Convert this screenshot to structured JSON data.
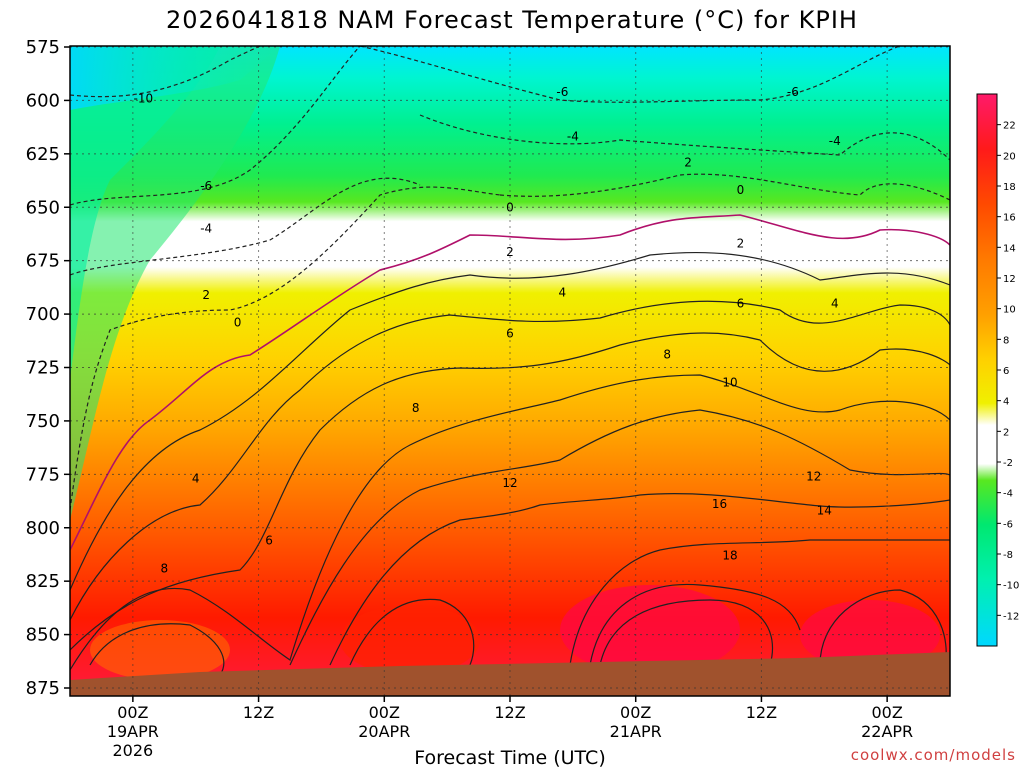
{
  "chart_data": {
    "type": "heatmap",
    "title": "2026041818 NAM Forecast Temperature (°C) for KPIH",
    "xlabel": "Forecast Time (UTC)",
    "ylabel": "",
    "y_ticks": [
      "575",
      "600",
      "625",
      "650",
      "675",
      "700",
      "725",
      "750",
      "775",
      "800",
      "825",
      "850",
      "875"
    ],
    "ylim_hpa": [
      875,
      570
    ],
    "x_ticks": [
      {
        "hour": 6,
        "label": "00Z",
        "sub1": "19APR",
        "sub2": "2026"
      },
      {
        "hour": 18,
        "label": "12Z",
        "sub1": "",
        "sub2": ""
      },
      {
        "hour": 30,
        "label": "00Z",
        "sub1": "20APR",
        "sub2": ""
      },
      {
        "hour": 42,
        "label": "12Z",
        "sub1": "",
        "sub2": ""
      },
      {
        "hour": 54,
        "label": "00Z",
        "sub1": "21APR",
        "sub2": ""
      },
      {
        "hour": 66,
        "label": "12Z",
        "sub1": "",
        "sub2": ""
      },
      {
        "hour": 78,
        "label": "00Z",
        "sub1": "22APR",
        "sub2": ""
      }
    ],
    "xlim_hours": [
      0,
      84
    ],
    "colorbar_ticks": [
      "22",
      "20",
      "18",
      "16",
      "14",
      "12",
      "10",
      "8",
      "6",
      "4",
      "2",
      "-2",
      "-4",
      "-6",
      "-8",
      "-10",
      "-12"
    ],
    "contour_labels": [
      {
        "text": "-10",
        "hour": 7,
        "p": 599
      },
      {
        "text": "-6",
        "hour": 13,
        "p": 640
      },
      {
        "text": "-4",
        "hour": 13,
        "p": 660
      },
      {
        "text": "2",
        "hour": 13,
        "p": 691
      },
      {
        "text": "0",
        "hour": 16,
        "p": 704
      },
      {
        "text": "-6",
        "hour": 47,
        "p": 596
      },
      {
        "text": "-4",
        "hour": 48,
        "p": 617
      },
      {
        "text": "2",
        "hour": 59,
        "p": 629
      },
      {
        "text": "0",
        "hour": 42,
        "p": 650
      },
      {
        "text": "2",
        "hour": 42,
        "p": 671
      },
      {
        "text": "4",
        "hour": 47,
        "p": 690
      },
      {
        "text": "6",
        "hour": 42,
        "p": 709
      },
      {
        "text": "8",
        "hour": 33,
        "p": 744
      },
      {
        "text": "4",
        "hour": 12,
        "p": 777
      },
      {
        "text": "6",
        "hour": 19,
        "p": 806
      },
      {
        "text": "8",
        "hour": 9,
        "p": 819
      },
      {
        "text": "12",
        "hour": 42,
        "p": 779
      },
      {
        "text": "8",
        "hour": 57,
        "p": 719
      },
      {
        "text": "10",
        "hour": 63,
        "p": 732
      },
      {
        "text": "-6",
        "hour": 69,
        "p": 596
      },
      {
        "text": "-4",
        "hour": 73,
        "p": 619
      },
      {
        "text": "0",
        "hour": 64,
        "p": 642
      },
      {
        "text": "2",
        "hour": 64,
        "p": 667
      },
      {
        "text": "6",
        "hour": 64,
        "p": 695
      },
      {
        "text": "4",
        "hour": 73,
        "p": 695
      },
      {
        "text": "12",
        "hour": 71,
        "p": 776
      },
      {
        "text": "14",
        "hour": 72,
        "p": 792
      },
      {
        "text": "16",
        "hour": 62,
        "p": 789
      },
      {
        "text": "18",
        "hour": 63,
        "p": 813
      }
    ],
    "credit": "coolwx.com/models"
  }
}
